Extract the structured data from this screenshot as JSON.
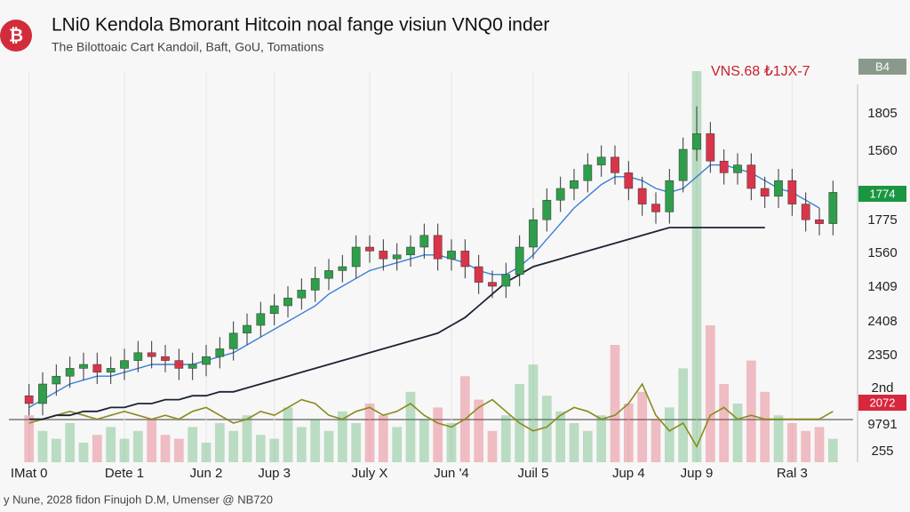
{
  "chart_data": {
    "type": "candlestick",
    "title": "LNi0 Kendola Bmorant Hitcoin noal fange visiun VNQ0 inder",
    "subtitle": "The Bilottoaic Cart Kandoil, Baft, GoU, Tomations",
    "logo": "₿",
    "annotation": "VNS.68 ₺1JX-7",
    "footer": "y Nune, 2028 fidon Finujoh D.M, Umenser @ NB720",
    "categories": [
      "IMat 0",
      null,
      null,
      null,
      null,
      null,
      null,
      "Dete 1",
      null,
      null,
      null,
      null,
      null,
      "Jun 2",
      null,
      null,
      null,
      null,
      "Jup 3",
      null,
      null,
      null,
      null,
      null,
      null,
      "July X",
      null,
      null,
      null,
      null,
      null,
      "Jun '4",
      null,
      null,
      null,
      null,
      null,
      "Juil 5",
      null,
      null,
      null,
      null,
      null,
      null,
      "Jup 4",
      null,
      null,
      null,
      null,
      "Jup 9",
      null,
      null,
      null,
      null,
      null,
      null,
      "Ral 3",
      null,
      null,
      null
    ],
    "open": [
      17,
      15,
      20,
      22,
      24,
      25,
      23,
      24,
      26,
      28,
      27,
      26,
      24,
      25,
      27,
      29,
      33,
      35,
      38,
      40,
      42,
      44,
      47,
      49,
      50,
      55,
      54,
      52,
      53,
      55,
      58,
      52,
      54,
      50,
      46,
      45,
      48,
      55,
      62,
      67,
      70,
      72,
      76,
      78,
      74,
      70,
      66,
      64,
      72,
      80,
      84,
      77,
      74,
      76,
      70,
      68,
      72,
      66,
      62,
      61
    ],
    "high": [
      20,
      23,
      25,
      27,
      28,
      28,
      27,
      29,
      31,
      31,
      30,
      29,
      28,
      30,
      32,
      36,
      38,
      41,
      43,
      45,
      47,
      50,
      52,
      53,
      58,
      58,
      57,
      56,
      58,
      61,
      61,
      57,
      57,
      53,
      49,
      51,
      58,
      65,
      70,
      73,
      75,
      79,
      81,
      81,
      77,
      73,
      69,
      75,
      83,
      91,
      87,
      80,
      79,
      79,
      73,
      75,
      75,
      69,
      65,
      72
    ],
    "low": [
      12,
      12,
      17,
      19,
      21,
      20,
      20,
      21,
      23,
      24,
      23,
      21,
      21,
      22,
      24,
      26,
      30,
      32,
      35,
      37,
      39,
      41,
      44,
      46,
      47,
      51,
      49,
      49,
      50,
      52,
      49,
      49,
      47,
      43,
      42,
      42,
      45,
      52,
      59,
      64,
      67,
      69,
      73,
      71,
      67,
      63,
      61,
      61,
      69,
      77,
      74,
      71,
      71,
      67,
      65,
      65,
      63,
      59,
      58,
      58
    ],
    "close": [
      15,
      20,
      22,
      24,
      25,
      23,
      24,
      26,
      28,
      27,
      26,
      24,
      25,
      27,
      29,
      33,
      35,
      38,
      40,
      42,
      44,
      47,
      49,
      50,
      55,
      54,
      52,
      53,
      55,
      58,
      52,
      54,
      50,
      46,
      45,
      48,
      55,
      62,
      67,
      70,
      72,
      76,
      78,
      74,
      70,
      66,
      64,
      72,
      80,
      84,
      77,
      74,
      76,
      70,
      68,
      72,
      66,
      62,
      61,
      69
    ],
    "up_color": "#2e9e4a",
    "down_color": "#d9344a",
    "ma_fast": {
      "color": "#3a7fd5",
      "values": [
        14,
        16,
        18,
        20,
        21,
        22,
        22,
        23,
        24,
        25,
        25,
        25,
        25,
        26,
        27,
        28,
        30,
        32,
        34,
        36,
        38,
        40,
        43,
        45,
        47,
        49,
        50,
        51,
        52,
        53,
        53,
        52,
        51,
        49,
        48,
        48,
        50,
        53,
        57,
        61,
        65,
        68,
        71,
        73,
        73,
        72,
        70,
        69,
        70,
        73,
        76,
        76,
        75,
        74,
        72,
        70,
        69,
        67,
        65,
        null
      ]
    },
    "ma_slow": {
      "color": "#1c2433",
      "values": [
        11,
        11,
        12,
        12,
        13,
        13,
        14,
        14,
        15,
        15,
        16,
        16,
        17,
        17,
        18,
        18,
        19,
        20,
        21,
        22,
        23,
        24,
        25,
        26,
        27,
        28,
        29,
        30,
        31,
        32,
        33,
        35,
        37,
        40,
        43,
        46,
        48,
        50,
        51,
        52,
        53,
        54,
        55,
        56,
        57,
        58,
        59,
        60,
        60,
        60,
        60,
        60,
        60,
        60,
        60,
        null,
        null,
        null,
        null,
        null
      ]
    },
    "volume": {
      "values": [
        12,
        8,
        6,
        10,
        5,
        7,
        9,
        6,
        8,
        11,
        7,
        6,
        9,
        5,
        10,
        8,
        12,
        7,
        6,
        14,
        9,
        11,
        8,
        13,
        10,
        15,
        12,
        9,
        18,
        11,
        14,
        10,
        22,
        16,
        8,
        12,
        20,
        25,
        17,
        13,
        10,
        8,
        12,
        30,
        15,
        18,
        11,
        14,
        24,
        100,
        35,
        20,
        15,
        26,
        18,
        12,
        10,
        8,
        9,
        6
      ]
    },
    "oscillator": {
      "color": "#8a8a1e",
      "values": [
        10,
        11,
        12,
        13,
        12,
        11,
        12,
        13,
        12,
        11,
        12,
        11,
        13,
        14,
        12,
        10,
        11,
        13,
        12,
        14,
        16,
        15,
        12,
        11,
        13,
        14,
        12,
        13,
        15,
        12,
        10,
        9,
        11,
        14,
        16,
        13,
        10,
        8,
        9,
        12,
        14,
        13,
        11,
        12,
        15,
        20,
        12,
        8,
        10,
        4,
        12,
        14,
        11,
        12,
        11,
        11,
        11,
        11,
        11,
        13
      ]
    },
    "ylim": [
      0,
      100
    ],
    "y_axis_labels": [
      "1805",
      "1560",
      "1775",
      "1560",
      "1409",
      "2408",
      "2350",
      "2nd",
      "9791",
      "255"
    ],
    "price_badges": [
      {
        "label": "B4",
        "color": "#8a9a8a"
      },
      {
        "label": "1774",
        "color": "#1a9641"
      },
      {
        "label": "2072",
        "color": "#d7263d"
      }
    ],
    "grid": true
  }
}
